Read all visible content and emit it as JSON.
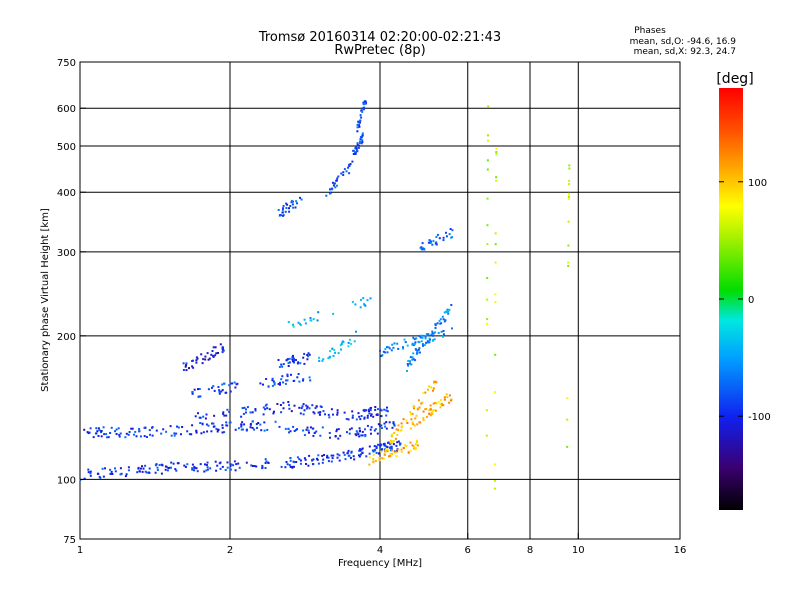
{
  "chart_data": {
    "type": "scatter",
    "title": "Tromsø 20160314 02:20:00-02:21:43",
    "subtitle": "RwPretec (8p)",
    "phases_title": "Phases",
    "phases_o": "mean, sd,O: -94.6, 16.9",
    "phases_x": "mean, sd,X:  92.3, 24.7",
    "xlabel": "Frequency [MHz]",
    "ylabel": "Stationary phase Virtual Height [km]",
    "xscale": "log",
    "yscale": "log",
    "xlim": [
      1,
      16
    ],
    "ylim": [
      75,
      750
    ],
    "xticks": [
      1,
      2,
      4,
      6,
      8,
      10,
      16
    ],
    "xtick_labels": [
      "1",
      "2",
      "4",
      "6",
      "8",
      "10",
      "16"
    ],
    "yticks": [
      75,
      100,
      200,
      300,
      400,
      500,
      600,
      750
    ],
    "ytick_labels": [
      "75",
      "100",
      "200",
      "300",
      "400",
      "500",
      "600",
      "750"
    ],
    "xgrid": [
      2,
      4,
      6,
      8,
      10
    ],
    "ygrid": [
      100,
      200,
      300,
      400,
      500,
      600
    ],
    "grid": true,
    "colorbar": {
      "label": "[deg]",
      "range": [
        -180,
        180
      ],
      "ticks": [
        100,
        0,
        -100
      ],
      "tick_labels": [
        "100",
        "0",
        "-100"
      ]
    },
    "series": [
      {
        "segments": [
          [
            1.0,
            1.55,
            102,
            106
          ],
          [
            1.55,
            2.6,
            106,
            108
          ],
          [
            2.6,
            3.6,
            108,
            113
          ],
          [
            3.6,
            4.4,
            113,
            118
          ]
        ],
        "count": 240,
        "phase": -95
      },
      {
        "segments": [
          [
            1.0,
            1.3,
            126,
            125
          ],
          [
            1.3,
            1.8,
            125,
            128
          ],
          [
            1.8,
            2.3,
            128,
            130
          ],
          [
            2.3,
            3.4,
            130,
            124
          ],
          [
            3.4,
            4.3,
            124,
            130
          ]
        ],
        "count": 200,
        "phase": -93
      },
      {
        "segments": [
          [
            1.7,
            2.6,
            134,
            142
          ],
          [
            2.6,
            3.5,
            142,
            136
          ],
          [
            3.5,
            4.2,
            136,
            140
          ]
        ],
        "count": 120,
        "phase": -98
      },
      {
        "segments": [
          [
            1.65,
            2.1,
            150,
            158
          ],
          [
            2.3,
            2.9,
            158,
            165
          ],
          [
            2.5,
            2.9,
            175,
            180
          ]
        ],
        "count": 100,
        "phase": -90
      },
      {
        "segments": [
          [
            1.6,
            1.95,
            170,
            190
          ]
        ],
        "count": 40,
        "phase": -105
      },
      {
        "segments": [
          [
            2.5,
            2.8,
            360,
            390
          ],
          [
            3.1,
            3.5,
            395,
            450
          ],
          [
            3.5,
            3.7,
            470,
            520
          ],
          [
            3.6,
            3.75,
            540,
            630
          ]
        ],
        "count": 110,
        "phase": -85
      },
      {
        "segments": [
          [
            4.2,
            5.2,
            120,
            160
          ],
          [
            4.6,
            5.6,
            130,
            150
          ],
          [
            3.8,
            4.8,
            110,
            118
          ]
        ],
        "count": 150,
        "phase": 105
      },
      {
        "segments": [
          [
            4.0,
            5.6,
            185,
            205
          ],
          [
            4.5,
            5.6,
            170,
            230
          ]
        ],
        "count": 110,
        "phase": -60
      },
      {
        "segments": [
          [
            4.8,
            5.6,
            305,
            330
          ]
        ],
        "count": 30,
        "phase": -70
      },
      {
        "segments": [
          [
            2.6,
            4.0,
            210,
            240
          ],
          [
            3.0,
            3.6,
            175,
            200
          ]
        ],
        "count": 50,
        "phase": -40
      },
      {
        "segments": [
          [
            6.55,
            6.6,
            90,
            640
          ],
          [
            6.8,
            6.85,
            85,
            520
          ],
          [
            9.5,
            9.6,
            110,
            480
          ]
        ],
        "count": 45,
        "phase": 60
      }
    ]
  }
}
